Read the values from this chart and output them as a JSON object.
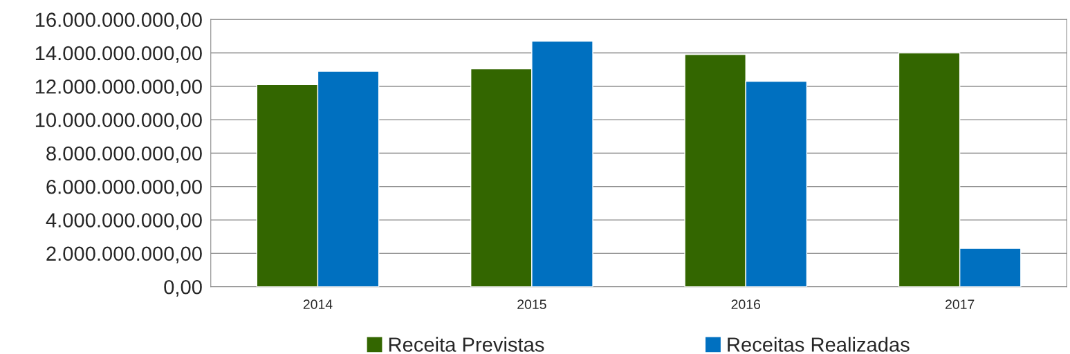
{
  "chart_data": {
    "type": "bar",
    "categories": [
      "2014",
      "2015",
      "2016",
      "2017"
    ],
    "series": [
      {
        "name": "Receita Previstas",
        "color": "#336600",
        "values": [
          12100000000,
          13050000000,
          13900000000,
          14000000000
        ]
      },
      {
        "name": "Receitas Realizadas",
        "color": "#0070c0",
        "values": [
          12900000000,
          14700000000,
          12300000000,
          2300000000
        ]
      }
    ],
    "ylim": [
      0,
      16000000000
    ],
    "yticks": [
      {
        "value": 0,
        "label": "0,00"
      },
      {
        "value": 2000000000,
        "label": "2.000.000.000,00"
      },
      {
        "value": 4000000000,
        "label": "4.000.000.000,00"
      },
      {
        "value": 6000000000,
        "label": "6.000.000.000,00"
      },
      {
        "value": 8000000000,
        "label": "8.000.000.000,00"
      },
      {
        "value": 10000000000,
        "label": "10.000.000.000,00"
      },
      {
        "value": 12000000000,
        "label": "12.000.000.000,00"
      },
      {
        "value": 14000000000,
        "label": "14.000.000.000,00"
      },
      {
        "value": 16000000000,
        "label": "16.000.000.000,00"
      }
    ],
    "grid": "y",
    "legend": "bottom"
  }
}
